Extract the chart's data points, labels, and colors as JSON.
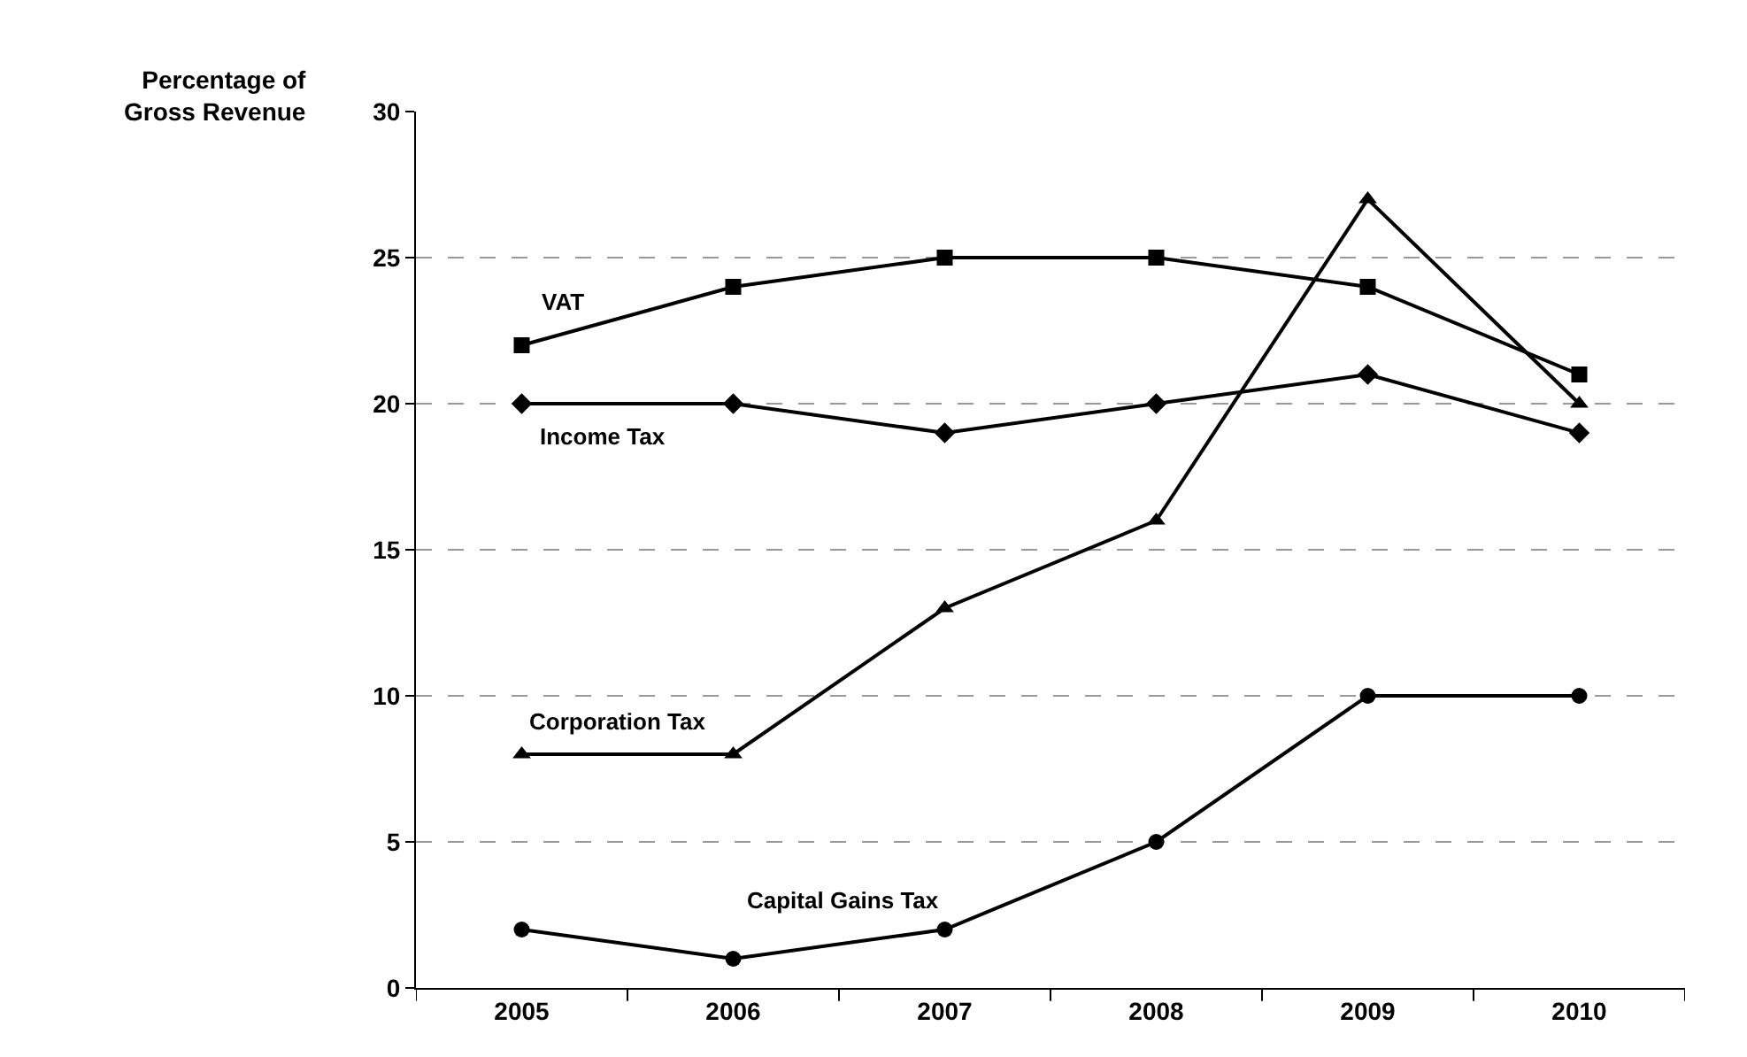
{
  "chart_data": {
    "type": "line",
    "ylabel": "Percentage of\nGross Revenue",
    "categories": [
      "2005",
      "2006",
      "2007",
      "2008",
      "2009",
      "2010"
    ],
    "series": [
      {
        "name": "VAT",
        "color": "#000000",
        "marker": "square",
        "values": [
          22,
          24,
          25,
          25,
          24,
          21
        ]
      },
      {
        "name": "Income Tax",
        "color": "#000000",
        "marker": "diamond",
        "values": [
          20,
          20,
          19,
          20,
          21,
          19
        ]
      },
      {
        "name": "Corporation Tax",
        "color": "#000000",
        "marker": "triangle",
        "values": [
          8,
          8,
          13,
          16,
          27,
          20
        ]
      },
      {
        "name": "Capital Gains Tax",
        "color": "#000000",
        "marker": "circle",
        "values": [
          2,
          1,
          2,
          5,
          10,
          10
        ]
      }
    ],
    "ylim": [
      0,
      30
    ],
    "yticks": [
      0,
      5,
      10,
      15,
      20,
      25,
      30
    ],
    "grid": "y",
    "legend": false,
    "line_style": "solid"
  }
}
